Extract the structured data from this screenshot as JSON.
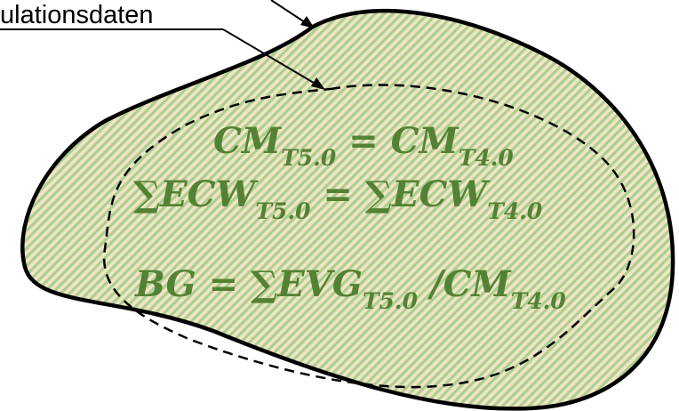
{
  "label": {
    "text": "ulationsdaten"
  },
  "equations": [
    {
      "parts": [
        "CM",
        "T5.0",
        " = ",
        "CM",
        "T4.0"
      ]
    },
    {
      "parts": [
        "∑",
        "ECW",
        "T5.0",
        " = ",
        "∑",
        "ECW",
        "T4.0"
      ]
    },
    {
      "parts": [
        "BG",
        " = ",
        "∑",
        "EVG",
        "T5.0",
        " /",
        "CM",
        "T4.0"
      ]
    }
  ],
  "colors": {
    "outline": "#000000",
    "hatch_green": "#a9d18e",
    "hatch_tan": "#f4e3c7",
    "equation_text": "#548235"
  }
}
